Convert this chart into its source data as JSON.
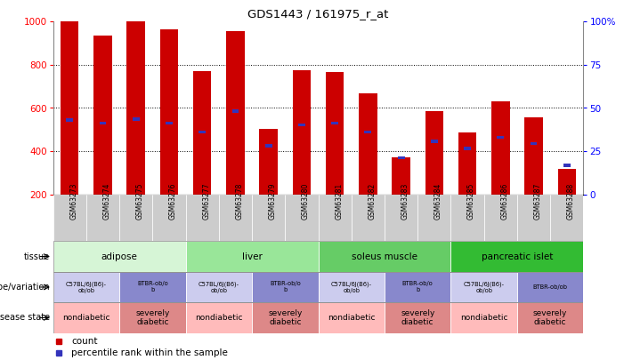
{
  "title": "GDS1443 / 161975_r_at",
  "samples": [
    "GSM63273",
    "GSM63274",
    "GSM63275",
    "GSM63276",
    "GSM63277",
    "GSM63278",
    "GSM63279",
    "GSM63280",
    "GSM63281",
    "GSM63282",
    "GSM63283",
    "GSM63284",
    "GSM63285",
    "GSM63286",
    "GSM63287",
    "GSM63288"
  ],
  "bar_tops": [
    1000,
    935,
    1000,
    965,
    770,
    955,
    505,
    773,
    765,
    668,
    370,
    585,
    488,
    630,
    558,
    320
  ],
  "bar_bottom": 200,
  "percentile_values": [
    545,
    530,
    548,
    530,
    490,
    585,
    425,
    522,
    530,
    490,
    370,
    445,
    413,
    465,
    435,
    335
  ],
  "bar_color": "#cc0000",
  "percentile_color": "#3333bb",
  "ylim_left": [
    200,
    1000
  ],
  "yticks_left": [
    200,
    400,
    600,
    800,
    1000
  ],
  "yticks_right_vals": [
    0,
    25,
    50,
    75,
    100
  ],
  "dotted_lines": [
    400,
    600,
    800
  ],
  "xtick_bg": "#dddddd",
  "tissue_groups": [
    {
      "label": "adipose",
      "start": 0,
      "end": 4,
      "color": "#d6f5d6"
    },
    {
      "label": "liver",
      "start": 4,
      "end": 8,
      "color": "#99e699"
    },
    {
      "label": "soleus muscle",
      "start": 8,
      "end": 12,
      "color": "#66cc66"
    },
    {
      "label": "pancreatic islet",
      "start": 12,
      "end": 16,
      "color": "#33bb33"
    }
  ],
  "genotype_groups": [
    {
      "label": "C57BL/6J(B6)-\nob/ob",
      "start": 0,
      "end": 2,
      "color": "#ccccee"
    },
    {
      "label": "BTBR-ob/o\nb",
      "start": 2,
      "end": 4,
      "color": "#8888cc"
    },
    {
      "label": "C57BL/6J(B6)-\nob/ob",
      "start": 4,
      "end": 6,
      "color": "#ccccee"
    },
    {
      "label": "BTBR-ob/o\nb",
      "start": 6,
      "end": 8,
      "color": "#8888cc"
    },
    {
      "label": "C57BL/6J(B6)-\nob/ob",
      "start": 8,
      "end": 10,
      "color": "#ccccee"
    },
    {
      "label": "BTBR-ob/o\nb",
      "start": 10,
      "end": 12,
      "color": "#8888cc"
    },
    {
      "label": "C57BL/6J(B6)-\nob/ob",
      "start": 12,
      "end": 14,
      "color": "#ccccee"
    },
    {
      "label": "BTBR-ob/ob",
      "start": 14,
      "end": 16,
      "color": "#8888cc"
    }
  ],
  "disease_groups": [
    {
      "label": "nondiabetic",
      "start": 0,
      "end": 2,
      "color": "#ffbbbb"
    },
    {
      "label": "severely\ndiabetic",
      "start": 2,
      "end": 4,
      "color": "#dd8888"
    },
    {
      "label": "nondiabetic",
      "start": 4,
      "end": 6,
      "color": "#ffbbbb"
    },
    {
      "label": "severely\ndiabetic",
      "start": 6,
      "end": 8,
      "color": "#dd8888"
    },
    {
      "label": "nondiabetic",
      "start": 8,
      "end": 10,
      "color": "#ffbbbb"
    },
    {
      "label": "severely\ndiabetic",
      "start": 10,
      "end": 12,
      "color": "#dd8888"
    },
    {
      "label": "nondiabetic",
      "start": 12,
      "end": 14,
      "color": "#ffbbbb"
    },
    {
      "label": "severely\ndiabetic",
      "start": 14,
      "end": 16,
      "color": "#dd8888"
    }
  ],
  "legend_count_color": "#cc0000",
  "legend_percentile_color": "#3333bb"
}
